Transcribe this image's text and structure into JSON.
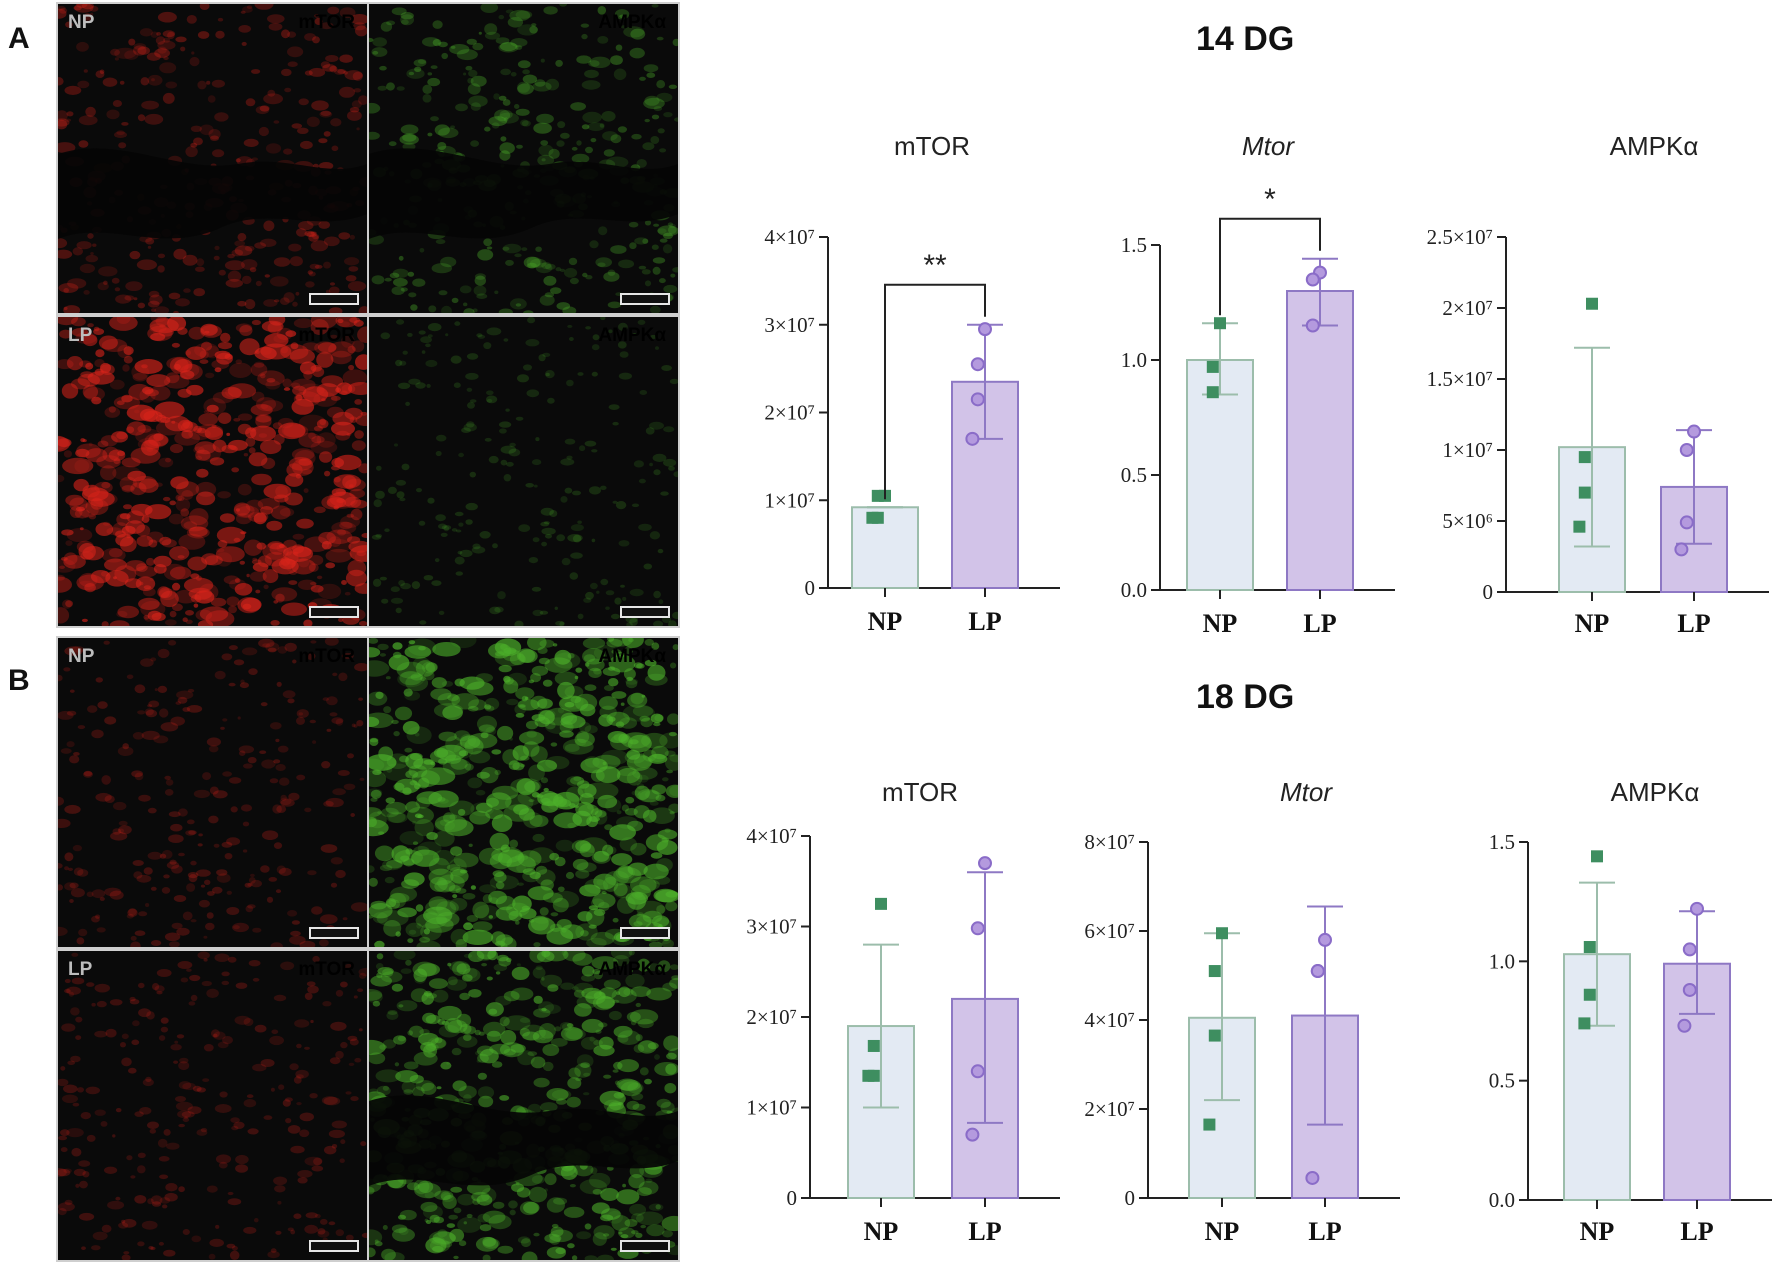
{
  "panels": {
    "a": {
      "letter": "A",
      "tiles": [
        {
          "group": "NP",
          "marker": "mTOR",
          "channel": "red",
          "intensity": 0.35,
          "dark_band": true
        },
        {
          "group": "",
          "marker": "AMPKα",
          "channel": "green",
          "intensity": 0.4,
          "dark_band": true
        },
        {
          "group": "LP",
          "marker": "mTOR",
          "channel": "red",
          "intensity": 0.85,
          "dark_band": false
        },
        {
          "group": "",
          "marker": "AMPKα",
          "channel": "green",
          "intensity": 0.12,
          "dark_band": false
        }
      ]
    },
    "b": {
      "letter": "B",
      "tiles": [
        {
          "group": "NP",
          "marker": "mTOR",
          "channel": "red",
          "intensity": 0.22,
          "dark_band": false
        },
        {
          "group": "",
          "marker": "AMPKα",
          "channel": "green",
          "intensity": 0.9,
          "dark_band": false
        },
        {
          "group": "LP",
          "marker": "mTOR",
          "channel": "red",
          "intensity": 0.2,
          "dark_band": false
        },
        {
          "group": "",
          "marker": "AMPKα",
          "channel": "green",
          "intensity": 0.75,
          "dark_band": true
        }
      ]
    }
  },
  "groups": {
    "dg14": {
      "title": "14 DG"
    },
    "dg18": {
      "title": "18 DG"
    }
  },
  "colors": {
    "red_channel": "#d8231a",
    "green_channel": "#4caf2a",
    "np_bar_fill": "#e3eaf3",
    "np_bar_stroke": "#9cbdab",
    "np_point": "#3e8e60",
    "lp_bar_fill": "#d2c3e8",
    "lp_bar_stroke": "#8e78c4",
    "lp_point": "#8a6cc8"
  },
  "chart_data": [
    {
      "id": "14dg-mtor-protein",
      "type": "bar",
      "title": "mTOR",
      "title_italic": false,
      "categories": [
        "NP",
        "LP"
      ],
      "ylim": [
        0,
        40000000
      ],
      "ticks": [
        {
          "v": 0,
          "t": "0"
        },
        {
          "v": 10000000,
          "t": "1×10⁷"
        },
        {
          "v": 20000000,
          "t": "2×10⁷"
        },
        {
          "v": 30000000,
          "t": "3×10⁷"
        },
        {
          "v": 40000000,
          "t": "4×10⁷"
        }
      ],
      "series": [
        {
          "mean": 9200000,
          "error": [
            9200000,
            9200000
          ],
          "points": [
            10500000,
            10500000,
            8000000,
            8000000
          ]
        },
        {
          "mean": 23500000,
          "error": [
            17000000,
            30000000
          ],
          "points": [
            29500000,
            25500000,
            21500000,
            17000000
          ]
        }
      ],
      "significance": "**"
    },
    {
      "id": "14dg-mtor-gene",
      "type": "bar",
      "title": "Mtor",
      "title_italic": true,
      "categories": [
        "NP",
        "LP"
      ],
      "ylim": [
        0,
        1.5
      ],
      "ticks": [
        {
          "v": 0,
          "t": "0.0"
        },
        {
          "v": 0.5,
          "t": "0.5"
        },
        {
          "v": 1.0,
          "t": "1.0"
        },
        {
          "v": 1.5,
          "t": "1.5"
        }
      ],
      "series": [
        {
          "mean": 1.0,
          "error": [
            0.85,
            1.16
          ],
          "points": [
            1.16,
            0.97,
            0.86
          ]
        },
        {
          "mean": 1.3,
          "error": [
            1.15,
            1.44
          ],
          "points": [
            1.38,
            1.35,
            1.15
          ]
        }
      ],
      "significance": "*"
    },
    {
      "id": "14dg-ampk-protein",
      "type": "bar",
      "title": "AMPKα",
      "title_italic": false,
      "categories": [
        "NP",
        "LP"
      ],
      "ylim": [
        0,
        25000000
      ],
      "ticks": [
        {
          "v": 0,
          "t": "0"
        },
        {
          "v": 5000000,
          "t": "5×10⁶"
        },
        {
          "v": 10000000,
          "t": "1×10⁷"
        },
        {
          "v": 15000000,
          "t": "1.5×10⁷"
        },
        {
          "v": 20000000,
          "t": "2×10⁷"
        },
        {
          "v": 25000000,
          "t": "2.5×10⁷"
        }
      ],
      "series": [
        {
          "mean": 10200000,
          "error": [
            3200000,
            17200000
          ],
          "points": [
            20300000,
            9500000,
            7000000,
            4600000
          ]
        },
        {
          "mean": 7400000,
          "error": [
            3400000,
            11400000
          ],
          "points": [
            11300000,
            10000000,
            4900000,
            3000000
          ]
        }
      ],
      "significance": ""
    },
    {
      "id": "18dg-mtor-protein",
      "type": "bar",
      "title": "mTOR",
      "title_italic": false,
      "categories": [
        "NP",
        "LP"
      ],
      "ylim": [
        0,
        40000000
      ],
      "ticks": [
        {
          "v": 0,
          "t": "0"
        },
        {
          "v": 10000000,
          "t": "1×10⁷"
        },
        {
          "v": 20000000,
          "t": "2×10⁷"
        },
        {
          "v": 30000000,
          "t": "3×10⁷"
        },
        {
          "v": 40000000,
          "t": "4×10⁷"
        }
      ],
      "series": [
        {
          "mean": 19000000,
          "error": [
            10000000,
            28000000
          ],
          "points": [
            32500000,
            16800000,
            13500000,
            13500000
          ]
        },
        {
          "mean": 22000000,
          "error": [
            8300000,
            36000000
          ],
          "points": [
            37000000,
            29800000,
            14000000,
            7000000
          ]
        }
      ],
      "significance": ""
    },
    {
      "id": "18dg-mtor-gene",
      "type": "bar",
      "title": "Mtor",
      "title_italic": true,
      "categories": [
        "NP",
        "LP"
      ],
      "ylim": [
        0,
        80000000
      ],
      "ticks": [
        {
          "v": 0,
          "t": "0"
        },
        {
          "v": 20000000,
          "t": "2×10⁷"
        },
        {
          "v": 40000000,
          "t": "4×10⁷"
        },
        {
          "v": 60000000,
          "t": "6×10⁷"
        },
        {
          "v": 80000000,
          "t": "8×10⁷"
        }
      ],
      "series": [
        {
          "mean": 40500000,
          "error": [
            22000000,
            59500000
          ],
          "points": [
            59500000,
            51000000,
            36500000,
            16500000
          ]
        },
        {
          "mean": 41000000,
          "error": [
            16500000,
            65500000
          ],
          "points": [
            58000000,
            51000000,
            51000000,
            4500000
          ]
        }
      ],
      "significance": ""
    },
    {
      "id": "18dg-ampk-protein",
      "type": "bar",
      "title": "AMPKα",
      "title_italic": false,
      "categories": [
        "NP",
        "LP"
      ],
      "ylim": [
        0,
        1.5
      ],
      "ticks": [
        {
          "v": 0,
          "t": "0.0"
        },
        {
          "v": 0.5,
          "t": "0.5"
        },
        {
          "v": 1.0,
          "t": "1.0"
        },
        {
          "v": 1.5,
          "t": "1.5"
        }
      ],
      "series": [
        {
          "mean": 1.03,
          "error": [
            0.73,
            1.33
          ],
          "points": [
            1.44,
            1.06,
            0.86,
            0.74
          ]
        },
        {
          "mean": 0.99,
          "error": [
            0.78,
            1.21
          ],
          "points": [
            1.22,
            1.05,
            0.88,
            0.73
          ]
        }
      ],
      "significance": ""
    }
  ]
}
